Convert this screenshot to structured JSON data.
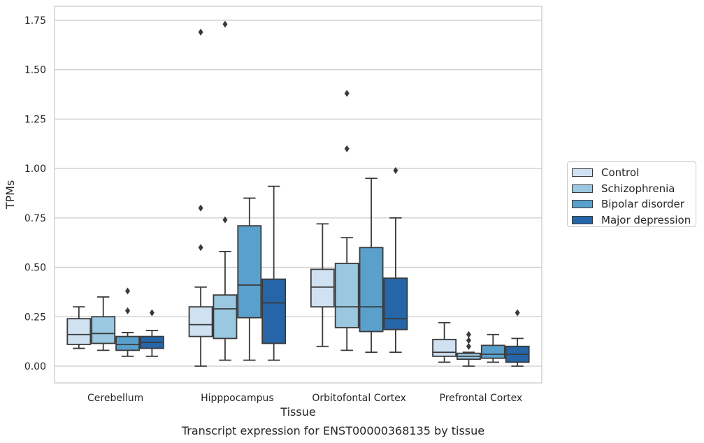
{
  "chart_data": {
    "type": "box",
    "title": "Transcript expression for ENST00000368135 by tissue",
    "xlabel": "Tissue",
    "ylabel": "TPMs",
    "ylim": [
      -0.08,
      1.82
    ],
    "yticks": [
      0.0,
      0.25,
      0.5,
      0.75,
      1.0,
      1.25,
      1.5,
      1.75
    ],
    "ytick_labels": [
      "0.00",
      "0.25",
      "0.50",
      "0.75",
      "1.00",
      "1.25",
      "1.50",
      "1.75"
    ],
    "categories": [
      "Cerebellum",
      "Hipppocampus",
      "Orbitofontal Cortex",
      "Prefrontal Cortex"
    ],
    "grid": true,
    "legend_position": "right",
    "series": [
      {
        "name": "Control",
        "color": "#d0e1f2",
        "boxes": [
          {
            "whislo": 0.09,
            "q1": 0.11,
            "med": 0.16,
            "q3": 0.24,
            "whishi": 0.3,
            "fliers": []
          },
          {
            "whislo": 0.0,
            "q1": 0.15,
            "med": 0.21,
            "q3": 0.3,
            "whishi": 0.4,
            "fliers": [
              0.6,
              0.8,
              1.69
            ]
          },
          {
            "whislo": 0.1,
            "q1": 0.3,
            "med": 0.4,
            "q3": 0.49,
            "whishi": 0.72,
            "fliers": []
          },
          {
            "whislo": 0.02,
            "q1": 0.05,
            "med": 0.07,
            "q3": 0.135,
            "whishi": 0.22,
            "fliers": []
          }
        ]
      },
      {
        "name": "Schizophrenia",
        "color": "#9ac8e0",
        "boxes": [
          {
            "whislo": 0.08,
            "q1": 0.115,
            "med": 0.165,
            "q3": 0.25,
            "whishi": 0.35,
            "fliers": []
          },
          {
            "whislo": 0.03,
            "q1": 0.14,
            "med": 0.29,
            "q3": 0.36,
            "whishi": 0.58,
            "fliers": [
              0.74,
              1.73
            ]
          },
          {
            "whislo": 0.08,
            "q1": 0.195,
            "med": 0.3,
            "q3": 0.52,
            "whishi": 0.65,
            "fliers": [
              1.1,
              1.38
            ]
          },
          {
            "whislo": 0.0,
            "q1": 0.035,
            "med": 0.05,
            "q3": 0.065,
            "whishi": 0.07,
            "fliers": [
              0.1,
              0.13,
              0.16
            ]
          }
        ]
      },
      {
        "name": "Bipolar disorder",
        "color": "#5aa0cd",
        "boxes": [
          {
            "whislo": 0.05,
            "q1": 0.08,
            "med": 0.11,
            "q3": 0.15,
            "whishi": 0.17,
            "fliers": [
              0.28,
              0.38
            ]
          },
          {
            "whislo": 0.03,
            "q1": 0.245,
            "med": 0.41,
            "q3": 0.71,
            "whishi": 0.85,
            "fliers": []
          },
          {
            "whislo": 0.07,
            "q1": 0.175,
            "med": 0.3,
            "q3": 0.6,
            "whishi": 0.95,
            "fliers": []
          },
          {
            "whislo": 0.02,
            "q1": 0.04,
            "med": 0.06,
            "q3": 0.105,
            "whishi": 0.16,
            "fliers": []
          }
        ]
      },
      {
        "name": "Major depression",
        "color": "#2565a8",
        "boxes": [
          {
            "whislo": 0.05,
            "q1": 0.09,
            "med": 0.12,
            "q3": 0.15,
            "whishi": 0.18,
            "fliers": [
              0.27
            ]
          },
          {
            "whislo": 0.03,
            "q1": 0.115,
            "med": 0.32,
            "q3": 0.44,
            "whishi": 0.91,
            "fliers": []
          },
          {
            "whislo": 0.07,
            "q1": 0.185,
            "med": 0.24,
            "q3": 0.445,
            "whishi": 0.75,
            "fliers": [
              0.99
            ]
          },
          {
            "whislo": 0.0,
            "q1": 0.02,
            "med": 0.06,
            "q3": 0.1,
            "whishi": 0.14,
            "fliers": [
              0.27
            ]
          }
        ]
      }
    ]
  }
}
